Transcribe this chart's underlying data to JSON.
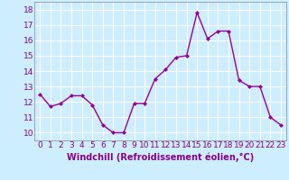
{
  "x": [
    0,
    1,
    2,
    3,
    4,
    5,
    6,
    7,
    8,
    9,
    10,
    11,
    12,
    13,
    14,
    15,
    16,
    17,
    18,
    19,
    20,
    21,
    22,
    23
  ],
  "y": [
    12.5,
    11.7,
    11.9,
    12.4,
    12.4,
    11.8,
    10.5,
    10.0,
    10.0,
    11.9,
    11.9,
    13.5,
    14.1,
    14.9,
    15.0,
    17.8,
    16.1,
    16.6,
    16.6,
    13.4,
    13.0,
    13.0,
    11.0,
    10.5
  ],
  "line_color": "#990099",
  "marker": "D",
  "marker_size": 2.0,
  "linewidth": 1.0,
  "xlabel": "Windchill (Refroidissement éolien,°C)",
  "xlabel_fontsize": 7,
  "ylim": [
    9.5,
    18.5
  ],
  "xlim": [
    -0.5,
    23.5
  ],
  "yticks": [
    10,
    11,
    12,
    13,
    14,
    15,
    16,
    17,
    18
  ],
  "xticks": [
    0,
    1,
    2,
    3,
    4,
    5,
    6,
    7,
    8,
    9,
    10,
    11,
    12,
    13,
    14,
    15,
    16,
    17,
    18,
    19,
    20,
    21,
    22,
    23
  ],
  "background_color": "#cceeff",
  "grid_color": "#ffffff",
  "tick_color": "#880088",
  "tick_fontsize": 6.5,
  "spine_color": "#888888"
}
